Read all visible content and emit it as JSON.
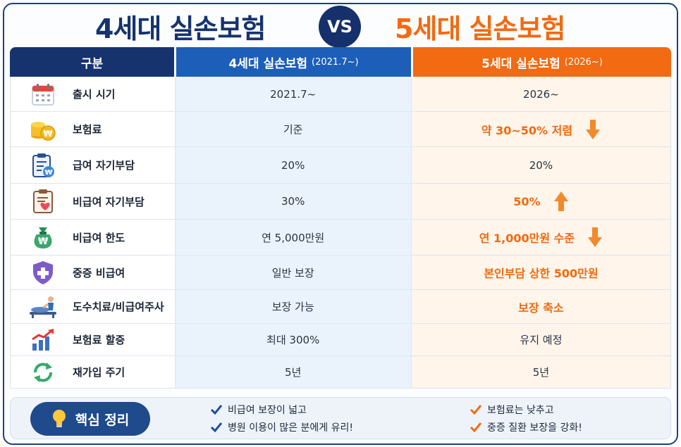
{
  "header": {
    "title_left": "4세대 실손보험",
    "vs": "VS",
    "title_right": "5세대 실손보험"
  },
  "table": {
    "col0": "구분",
    "col1": {
      "title": "4세대 실손보험",
      "sub": "(2021.7~)"
    },
    "col2": {
      "title": "5세대 실손보험",
      "sub": "(2026~)"
    },
    "rows": [
      {
        "label": "출시 시기",
        "icon": "calendar-icon",
        "gen4": "2021.7~",
        "gen5": "2026~",
        "highlight": false,
        "arrow": ""
      },
      {
        "label": "보험료",
        "icon": "coins-icon",
        "gen4": "기준",
        "gen5": "약 30~50% 저렴",
        "highlight": true,
        "arrow": "down"
      },
      {
        "label": "급여 자기부담",
        "icon": "clipboard-won-icon",
        "gen4": "20%",
        "gen5": "20%",
        "highlight": false,
        "arrow": ""
      },
      {
        "label": "비급여 자기부담",
        "icon": "clipboard-heart-icon",
        "gen4": "30%",
        "gen5": "50%",
        "highlight": true,
        "arrow": "up"
      },
      {
        "label": "비급여 한도",
        "icon": "money-bag-icon",
        "gen4": "연 5,000만원",
        "gen5": "연 1,000만원 수준",
        "highlight": true,
        "arrow": "down"
      },
      {
        "label": "중증 비급여",
        "icon": "shield-plus-icon",
        "gen4": "일반 보장",
        "gen5": "본인부담 상한 500만원",
        "highlight": true,
        "arrow": ""
      },
      {
        "label": "도수치료/비급여주사",
        "icon": "massage-therapy-icon",
        "gen4": "보장 가능",
        "gen5": "보장 축소",
        "highlight": true,
        "arrow": ""
      },
      {
        "label": "보험료 할증",
        "icon": "rising-chart-icon",
        "gen4": "최대 300%",
        "gen5": "유지 예정",
        "highlight": false,
        "arrow": ""
      },
      {
        "label": "재가입 주기",
        "icon": "cycle-icon",
        "gen4": "5년",
        "gen5": "5년",
        "highlight": false,
        "arrow": ""
      }
    ]
  },
  "summary": {
    "badge": "핵심 정리",
    "left_points": [
      "비급여 보장이 넓고",
      "병원 이용이 많은 분에게 유리!"
    ],
    "right_points": [
      "보험료는 낮추고",
      "중증 질환 보장을 강화!"
    ]
  },
  "colors": {
    "navy": "#16336e",
    "blue": "#1d5fb8",
    "orange": "#f26a12",
    "gen4_bg": "#eaf2fc",
    "gen5_bg": "#fff5ea"
  }
}
